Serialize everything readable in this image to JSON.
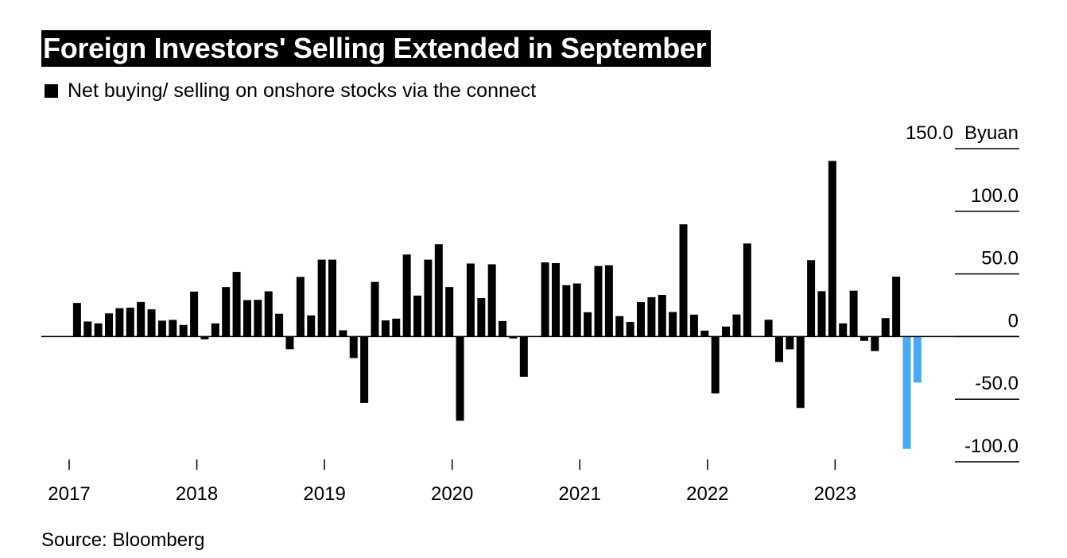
{
  "title": "Foreign Investors' Selling Extended in September",
  "legend_label": "Net buying/ selling on onshore stocks via the connect",
  "source": "Source: Bloomberg",
  "colors": {
    "bar": "#000000",
    "highlight": "#4aaaf0",
    "axis": "#000000"
  },
  "chart_data": {
    "type": "bar",
    "title": "Foreign Investors' Selling Extended in September",
    "unit_label": "Byuan",
    "ylim": [
      -100,
      150
    ],
    "y_ticks": [
      150,
      100,
      50,
      0,
      -50,
      -100
    ],
    "y_tick_labels": [
      "150.0",
      "100.0",
      "50.0",
      "0",
      "-50.0",
      "-100.0"
    ],
    "x_ticks": [
      "2017",
      "2018",
      "2019",
      "2020",
      "2021",
      "2022",
      "2023"
    ],
    "legend_position": "top-left",
    "grid": false,
    "series": [
      {
        "name": "Net buying/ selling on onshore stocks via the connect",
        "start": "2017-01",
        "values": [
          0,
          26.8,
          12.0,
          10.5,
          18.5,
          22.6,
          23.0,
          27.6,
          21.7,
          12.7,
          13.3,
          9.3,
          35.9,
          -2.2,
          10.5,
          39.5,
          51.6,
          29.1,
          29.3,
          36.1,
          18.2,
          -10.1,
          47.6,
          16.9,
          61.4,
          61.4,
          5.0,
          -17.2,
          -53.0,
          43.6,
          12.9,
          14.3,
          65.5,
          32.7,
          61.4,
          73.7,
          39.5,
          -67.2,
          58.3,
          30.7,
          57.7,
          12.4,
          -1.5,
          -32.1,
          -0.3,
          59.2,
          58.6,
          41.0,
          42.4,
          19.4,
          56.3,
          56.9,
          16.3,
          11.7,
          27.5,
          31.4,
          33.3,
          19.6,
          89.6,
          17.5,
          4.7,
          -45.4,
          8.0,
          17.6,
          74.3,
          -0.4,
          13.4,
          -20.3,
          -10.2,
          -57.0,
          61.0,
          36.2,
          140.2,
          10.5,
          36.6,
          -3.4,
          -11.6,
          14.7,
          47.8,
          -89.7,
          -36.7,
          0
        ]
      }
    ],
    "highlight_last": 2
  }
}
